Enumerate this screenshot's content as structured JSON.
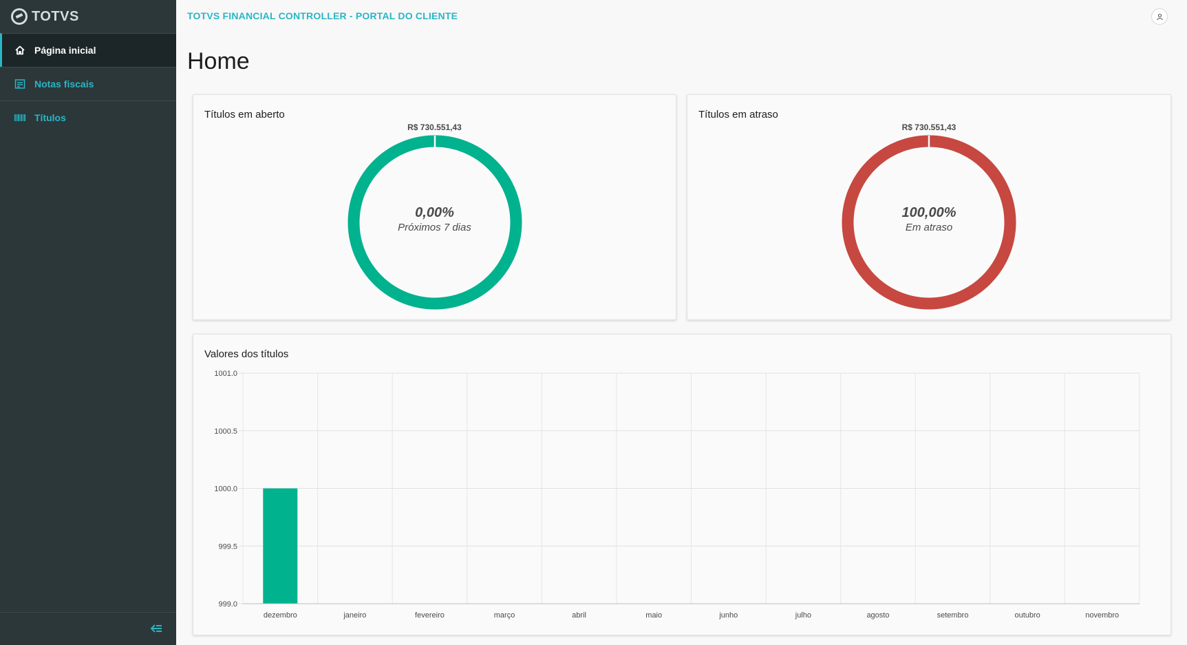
{
  "brand": {
    "name": "TOTVS"
  },
  "sidebar": {
    "items": [
      {
        "label": "Página inicial",
        "icon": "home-icon",
        "active": true
      },
      {
        "label": "Notas fiscais",
        "icon": "receipt-icon",
        "active": false
      },
      {
        "label": "Títulos",
        "icon": "barcode-icon",
        "active": false
      }
    ]
  },
  "header": {
    "title": "TOTVS FINANCIAL CONTROLLER - PORTAL DO CLIENTE"
  },
  "page": {
    "title": "Home"
  },
  "cards": {
    "open": {
      "title": "Títulos em aberto",
      "amount": "R$ 730.551,43",
      "percent": "0,00%",
      "caption": "Próximos 7 dias",
      "color": "#00b28e"
    },
    "overdue": {
      "title": "Títulos em atraso",
      "amount": "R$ 730.551,43",
      "percent": "100,00%",
      "caption": "Em atraso",
      "color": "#c64840"
    },
    "values": {
      "title": "Valores dos títulos"
    }
  },
  "colors": {
    "accent": "#29b6c5",
    "sidebar": "#2c3739",
    "bar": "#00b28e"
  },
  "chart_data": {
    "type": "bar",
    "categories": [
      "dezembro",
      "janeiro",
      "fevereiro",
      "março",
      "abril",
      "maio",
      "junho",
      "julho",
      "agosto",
      "setembro",
      "outubro",
      "novembro"
    ],
    "values": [
      1000.0,
      0,
      0,
      0,
      0,
      0,
      0,
      0,
      0,
      0,
      0,
      0
    ],
    "yticks": [
      "1001.0",
      "1000.5",
      "1000.0",
      "999.5",
      "999.0"
    ],
    "ylim": [
      999.0,
      1001.0
    ],
    "grid": true
  }
}
